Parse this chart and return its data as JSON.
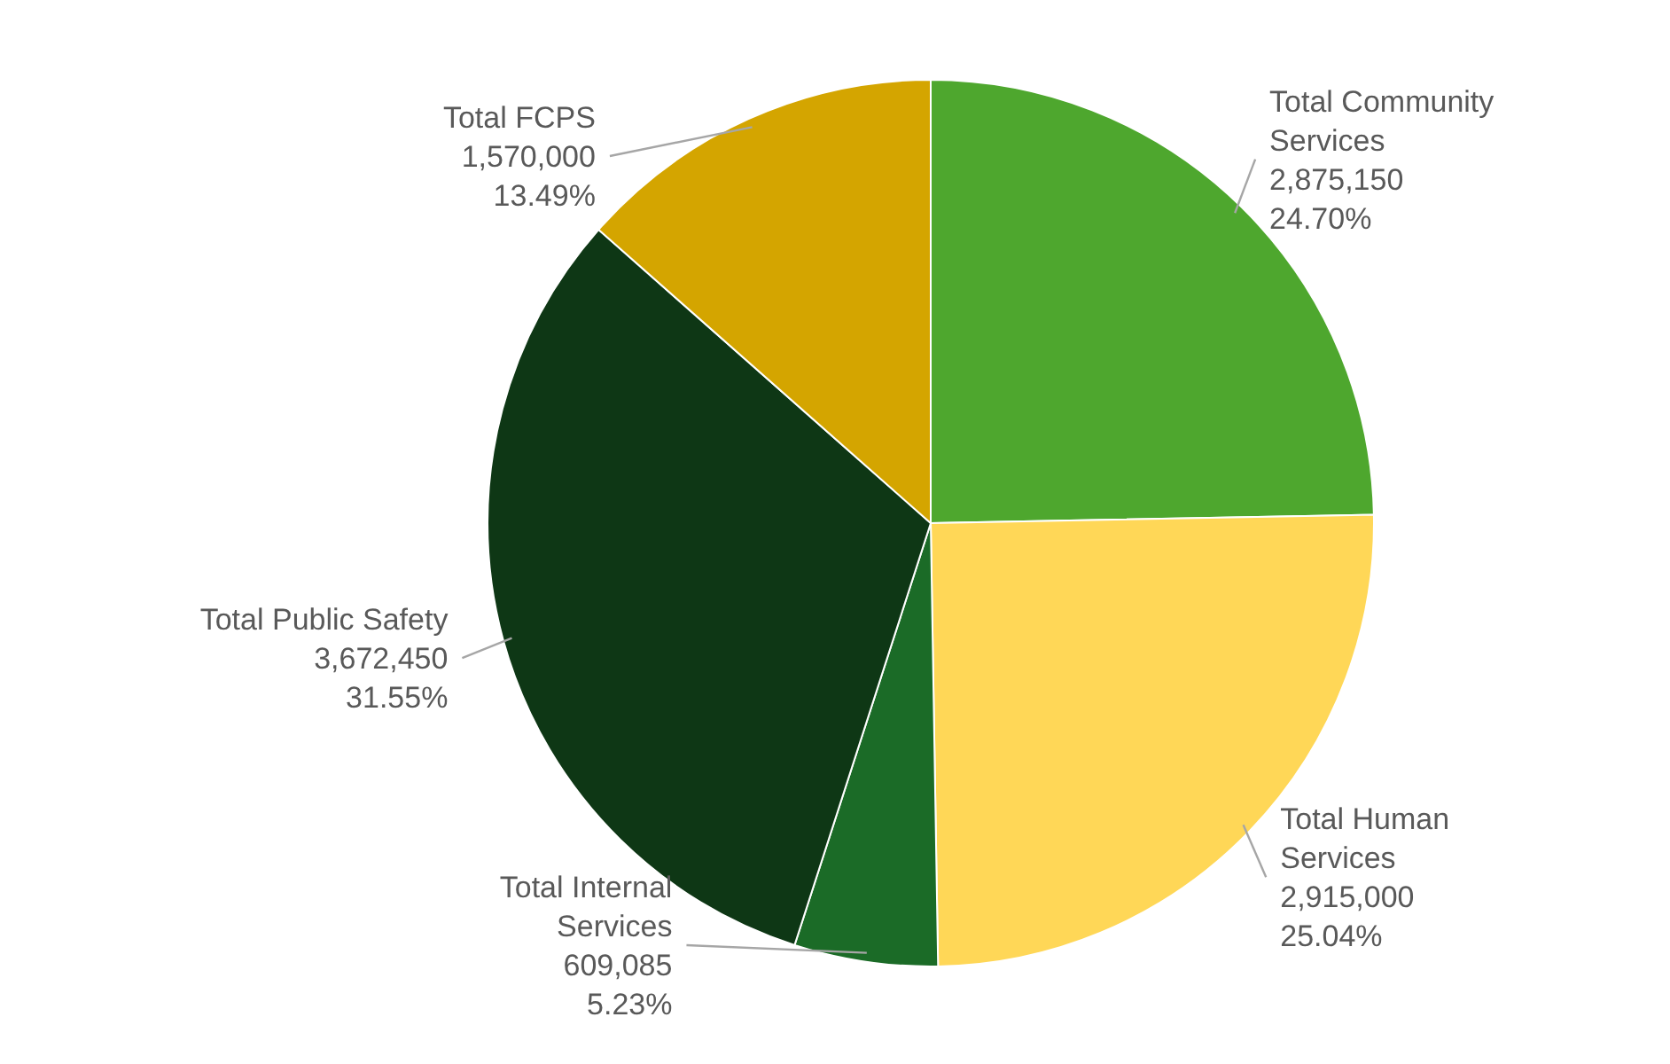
{
  "chart_data": {
    "type": "pie",
    "categories": [
      "Total Community Services",
      "Total Human Services",
      "Total Internal Services",
      "Total Public Safety",
      "Total FCPS"
    ],
    "values": [
      2875150,
      2915000,
      609085,
      3672450,
      1570000
    ],
    "colors": [
      "#4ea72e",
      "#ffd757",
      "#1b6b27",
      "#0e3715",
      "#d4a500"
    ],
    "value_labels": [
      "2,875,150\n24.70%",
      "2,915,000\n25.04%",
      "609,085\n5.23%",
      "3,672,450\n31.55%",
      "1,570,000\n13.49%"
    ]
  }
}
